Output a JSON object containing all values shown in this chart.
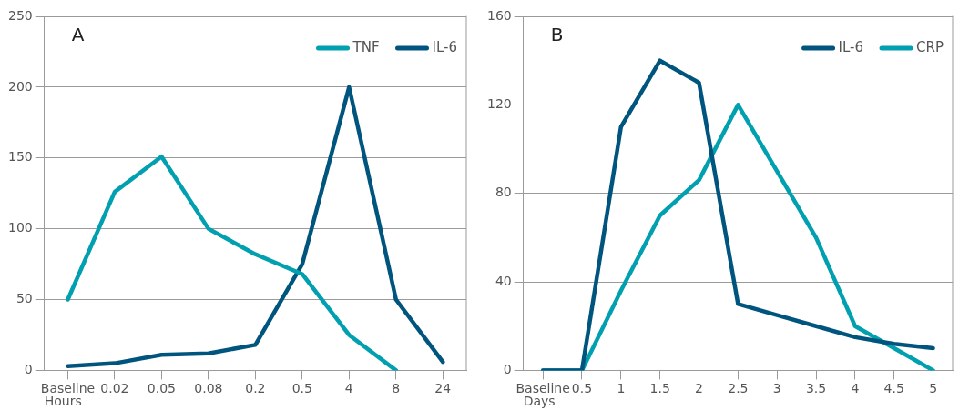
{
  "chart_data": [
    {
      "type": "line",
      "xlabel": "Hours",
      "annotations": [
        "A"
      ],
      "categories": [
        "Baseline",
        "0.02",
        "0.05",
        "0.08",
        "0.2",
        "0.5",
        "4",
        "8",
        "24"
      ],
      "series": [
        {
          "name": "TNF",
          "color": "#00a0b0",
          "values": [
            50,
            126,
            151,
            100,
            82,
            68,
            25,
            0,
            null
          ]
        },
        {
          "name": "IL-6",
          "color": "#00557f",
          "values": [
            3,
            5,
            11,
            12,
            18,
            75,
            200,
            50,
            6
          ]
        }
      ],
      "ylim": [
        0,
        250
      ],
      "yticks": [
        0,
        50,
        100,
        150,
        200,
        250
      ],
      "grid": "y",
      "legend": "top right",
      "marker": "none",
      "line_style": "solid"
    },
    {
      "type": "line",
      "xlabel": "Days",
      "annotations": [
        "B"
      ],
      "categories": [
        "Baseline",
        "0.5",
        "1",
        "1.5",
        "2",
        "2.5",
        "3",
        "3.5",
        "4",
        "4.5",
        "5"
      ],
      "series": [
        {
          "name": "IL-6",
          "color": "#00557f",
          "values": [
            0,
            0,
            110,
            140,
            130,
            30,
            25,
            20,
            15,
            12,
            10
          ]
        },
        {
          "name": "CRP",
          "color": "#00a0b0",
          "values": [
            0,
            0,
            36,
            70,
            86,
            120,
            90,
            60,
            20,
            10,
            0
          ]
        }
      ],
      "ylim": [
        0,
        160
      ],
      "yticks": [
        0,
        40,
        80,
        120,
        160
      ],
      "grid": "y",
      "legend": "top right",
      "marker": "none",
      "line_style": "solid"
    }
  ]
}
